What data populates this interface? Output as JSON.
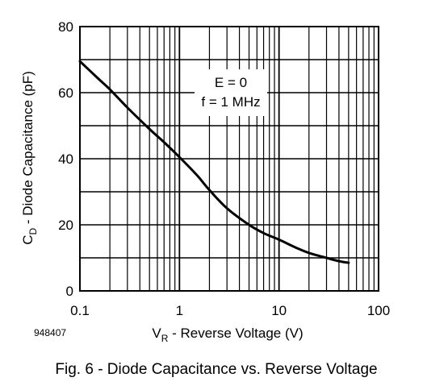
{
  "chart_data": {
    "type": "line",
    "x_scale": "log",
    "xlim": [
      0.1,
      100
    ],
    "ylim": [
      0,
      80
    ],
    "x_ticks": [
      0.1,
      1,
      10,
      100
    ],
    "x_tick_labels": [
      "0.1",
      "1",
      "10",
      "100"
    ],
    "y_ticks": [
      0,
      20,
      40,
      60,
      80
    ],
    "y_tick_labels": [
      "0",
      "20",
      "40",
      "60",
      "80"
    ],
    "grid": true,
    "xlabel": {
      "main": "V",
      "sub": "R",
      "rest": " - Reverse Voltage (V)"
    },
    "ylabel": {
      "main": "C",
      "sub": "D",
      "rest": " - Diode Capacitance (pF)"
    },
    "annotations": [
      "E = 0",
      "f = 1 MHz"
    ],
    "figure_id": "948407",
    "caption": "Fig. 6 - Diode Capacitance vs. Reverse Voltage",
    "series": [
      {
        "x": [
          0.1,
          0.15,
          0.2,
          0.3,
          0.5,
          0.7,
          1,
          1.5,
          2,
          3,
          5,
          7,
          10,
          15,
          20,
          30,
          40,
          50
        ],
        "y": [
          69.5,
          64.5,
          61,
          55.5,
          49,
          45,
          40.5,
          35,
          30.5,
          25,
          20,
          17.5,
          15.5,
          13,
          11.5,
          10,
          9,
          8.5
        ]
      }
    ],
    "line_color": "#000000"
  }
}
